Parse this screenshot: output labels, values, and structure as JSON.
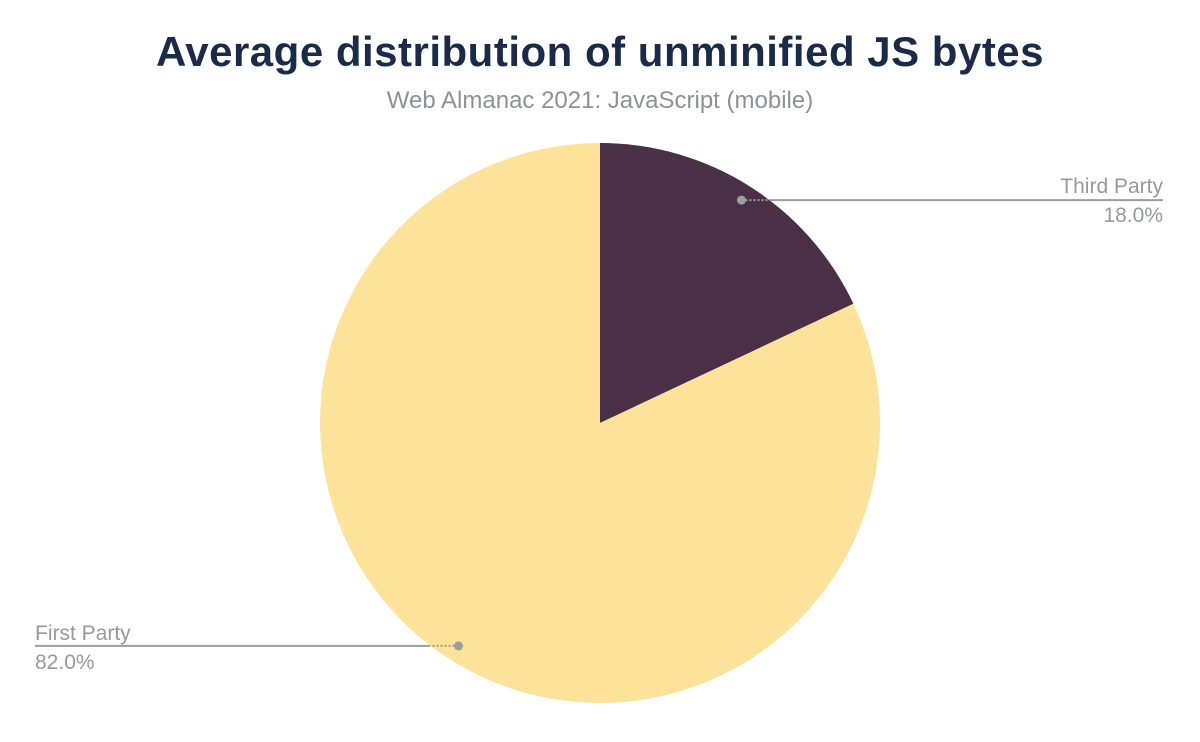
{
  "page": {
    "background_color": "#ffffff"
  },
  "header": {
    "title": "Average distribution of unminified JS bytes",
    "subtitle": "Web Almanac 2021: JavaScript (mobile)"
  },
  "colors": {
    "title": "#1a2b49",
    "subtitle": "#8f9196",
    "callout_text": "#97999e",
    "leader_line": "#9b9da1",
    "leader_dot": "#9b9da1"
  },
  "chart_data": {
    "type": "pie",
    "title": "Average distribution of unminified JS bytes",
    "subtitle": "Web Almanac 2021: JavaScript (mobile)",
    "unit": "percent",
    "start_angle_deg": 0,
    "direction": "clockwise",
    "grid": false,
    "legend_position": "callout-labels",
    "slices": [
      {
        "label": "Third Party",
        "value": 18.0,
        "display_value": "18.0%",
        "color": "#4a3047",
        "callout_side": "right"
      },
      {
        "label": "First Party",
        "value": 82.0,
        "display_value": "82.0%",
        "color": "#fde39a",
        "callout_side": "left"
      }
    ]
  }
}
